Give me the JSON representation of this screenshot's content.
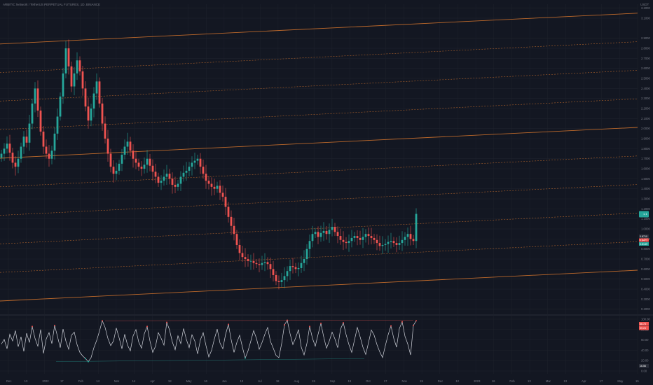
{
  "header": {
    "symbol_title": "ARBITIC Network / TetherUS PERPETUAL FUTURES, 1D, BINANCE"
  },
  "colors": {
    "background": "#131722",
    "grid": "#1e222d",
    "up": "#26a69a",
    "down": "#ef5350",
    "channel": "#d0722c",
    "oscillator": "#d1d4dc",
    "osc_high": "#ef5350",
    "osc_low": "#26a69a",
    "axis_text": "#787b86",
    "last_price_bg": "#26a69a",
    "osc_value_bg": "#ef5350"
  },
  "chart_data": [
    {
      "type": "candlestick",
      "title": "ARBITIC Network / TetherUS PERPETUAL FUTURES, 1D, BINANCE",
      "currency": "USDT",
      "x_ticks": [
        "Dec",
        "13",
        "2022",
        "17",
        "Feb",
        "14",
        "Mar",
        "14",
        "Apr",
        "18",
        "May",
        "16",
        "Jun",
        "13",
        "Jul",
        "18",
        "Aug",
        "15",
        "Sep",
        "19",
        "Oct",
        "17",
        "Nov",
        "15",
        "Dec",
        "12",
        "2023",
        "16",
        "Feb",
        "13",
        "Mar",
        "13",
        "Apr",
        "17",
        "May",
        "15"
      ],
      "y_ticks": [
        "3.2000",
        "3.1000",
        "2.9000",
        "2.8000",
        "2.7000",
        "2.6000",
        "2.5000",
        "2.4000",
        "2.3000",
        "2.2000",
        "2.1000",
        "2.0000",
        "1.9000",
        "1.8000",
        "1.7000",
        "1.6000",
        "1.5000",
        "1.4000",
        "1.3000",
        "1.2000",
        "1.1000",
        "1.0000",
        "0.9000",
        "0.8000",
        "0.7000",
        "0.6000",
        "0.5000",
        "0.4000",
        "0.3000",
        "0.2000"
      ],
      "ylim": [
        0.17,
        3.24
      ],
      "last_price": "1.1",
      "price_labels": [
        "0.8710",
        "0.8471",
        "0.8149"
      ],
      "series": [
        {
          "values": [
            1.75,
            1.8,
            1.85,
            1.76,
            1.66,
            1.62,
            1.7,
            1.82,
            1.92,
            1.86,
            2.05,
            2.25,
            2.4,
            2.18,
            1.97,
            1.82,
            1.75,
            1.7,
            1.78,
            1.95,
            2.12,
            2.32,
            2.55,
            2.8,
            2.62,
            2.42,
            2.55,
            2.68,
            2.57,
            2.4,
            2.22,
            2.08,
            2.2,
            2.35,
            2.47,
            2.25,
            2.05,
            1.9,
            1.75,
            1.62,
            1.55,
            1.58,
            1.65,
            1.74,
            1.82,
            1.87,
            1.78,
            1.7,
            1.66,
            1.62,
            1.6,
            1.64,
            1.7,
            1.63,
            1.57,
            1.52,
            1.46,
            1.48,
            1.52,
            1.55,
            1.5,
            1.44,
            1.42,
            1.45,
            1.52,
            1.56,
            1.58,
            1.62,
            1.66,
            1.68,
            1.7,
            1.62,
            1.55,
            1.48,
            1.45,
            1.42,
            1.4,
            1.43,
            1.36,
            1.32,
            1.22,
            1.12,
            1.03,
            0.95,
            0.84,
            0.76,
            0.72,
            0.7,
            0.68,
            0.68,
            0.66,
            0.65,
            0.64,
            0.66,
            0.67,
            0.65,
            0.6,
            0.54,
            0.48,
            0.47,
            0.49,
            0.53,
            0.58,
            0.63,
            0.62,
            0.6,
            0.61,
            0.66,
            0.7,
            0.8,
            0.88,
            0.95,
            0.97,
            0.92,
            0.96,
            0.98,
            0.95,
            0.99,
            1.02,
            0.97,
            0.93,
            0.89,
            0.87,
            0.86,
            0.88,
            0.91,
            0.93,
            0.91,
            0.89,
            0.92,
            0.95,
            0.93,
            0.91,
            0.89,
            0.86,
            0.83,
            0.84,
            0.85,
            0.87,
            0.88,
            0.86,
            0.84,
            0.86,
            0.89,
            0.92,
            0.95,
            0.9,
            0.88,
            1.15
          ]
        }
      ],
      "channel_lines": 10
    },
    {
      "type": "line",
      "name": "oscillator",
      "y_ticks": [
        "100.00",
        "80.00",
        "60.00",
        "40.00",
        "20.00",
        "0.00"
      ],
      "ylim": [
        0,
        100
      ],
      "value_labels": [
        "66.73",
        "59.24",
        "16.56"
      ],
      "series": [
        {
          "values": [
            52,
            61,
            43,
            71,
            58,
            78,
            47,
            66,
            38,
            73,
            55,
            86,
            63,
            48,
            80,
            34,
            62,
            74,
            53,
            88,
            67,
            45,
            81,
            58,
            42,
            69,
            75,
            51,
            36,
            29,
            24,
            18,
            26,
            45,
            59,
            77,
            97,
            84,
            63,
            49,
            58,
            83,
            64,
            43,
            71,
            50,
            39,
            68,
            80,
            56,
            44,
            72,
            86,
            58,
            36,
            48,
            74,
            63,
            50,
            94,
            79,
            56,
            41,
            68,
            53,
            82,
            61,
            45,
            70,
            58,
            33,
            60,
            74,
            49,
            27,
            40,
            62,
            81,
            54,
            43,
            71,
            90,
            60,
            36,
            55,
            69,
            46,
            25,
            39,
            58,
            78,
            63,
            42,
            55,
            71,
            84,
            57,
            44,
            30,
            26,
            53,
            89,
            98,
            72,
            51,
            64,
            80,
            46,
            31,
            53,
            86,
            63,
            48,
            71,
            92,
            66,
            44,
            58,
            75,
            62,
            45,
            81,
            93,
            70,
            51,
            36,
            60,
            84,
            66,
            46,
            32,
            55,
            79,
            69,
            51,
            37,
            26,
            49,
            70,
            87,
            63,
            46,
            82,
            95,
            67,
            52,
            31,
            88,
            97
          ]
        }
      ]
    }
  ]
}
